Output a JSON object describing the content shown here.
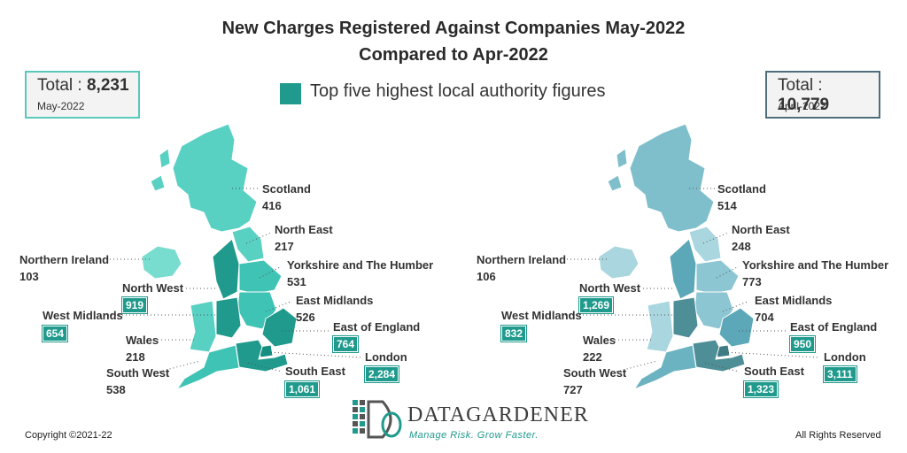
{
  "title": {
    "line1": "New Charges Registered Against Companies May-2022",
    "line2": "Compared to Apr-2022"
  },
  "legend": {
    "label": "Top five highest local authority figures",
    "color": "#1f9a8c"
  },
  "left_panel": {
    "total_label": "Total :",
    "total_value": "8,231",
    "period": "May-2022",
    "box_color": "#5ac8bb",
    "regions": {
      "scotland": {
        "name": "Scotland",
        "value": "416"
      },
      "north_east": {
        "name": "North East",
        "value": "217"
      },
      "northern_ireland": {
        "name": "Northern Ireland",
        "value": "103"
      },
      "yorkshire": {
        "name": "Yorkshire and The Humber",
        "value": "531"
      },
      "north_west": {
        "name": "North West",
        "value": "919"
      },
      "east_midlands": {
        "name": "East Midlands",
        "value": "526"
      },
      "west_midlands": {
        "name": "West Midlands",
        "value": "654"
      },
      "east_of_england": {
        "name": "East of England",
        "value": "764"
      },
      "wales": {
        "name": "Wales",
        "value": "218"
      },
      "london": {
        "name": "London",
        "value": "2,284"
      },
      "south_west": {
        "name": "South West",
        "value": "538"
      },
      "south_east": {
        "name": "South East",
        "value": "1,061"
      }
    }
  },
  "right_panel": {
    "total_label": "Total :",
    "total_value": "10,779",
    "period": "April-2022",
    "box_color": "#4e6e7c",
    "regions": {
      "scotland": {
        "name": "Scotland",
        "value": "514"
      },
      "north_east": {
        "name": "North East",
        "value": "248"
      },
      "northern_ireland": {
        "name": "Northern Ireland",
        "value": "106"
      },
      "yorkshire": {
        "name": "Yorkshire and The Humber",
        "value": "773"
      },
      "north_west": {
        "name": "North West",
        "value": "1,269"
      },
      "east_midlands": {
        "name": "East Midlands",
        "value": "704"
      },
      "west_midlands": {
        "name": "West Midlands",
        "value": "832"
      },
      "east_of_england": {
        "name": "East of England",
        "value": "950"
      },
      "wales": {
        "name": "Wales",
        "value": "222"
      },
      "london": {
        "name": "London",
        "value": "3,111"
      },
      "south_west": {
        "name": "South West",
        "value": "727"
      },
      "south_east": {
        "name": "South East",
        "value": "1,323"
      }
    }
  },
  "logo": {
    "word": "DATAGARDENER",
    "tagline": "Manage Risk. Grow Faster."
  },
  "footer": {
    "copyright": "Copyright ©2021-22",
    "rights": "All Rights Reserved"
  }
}
